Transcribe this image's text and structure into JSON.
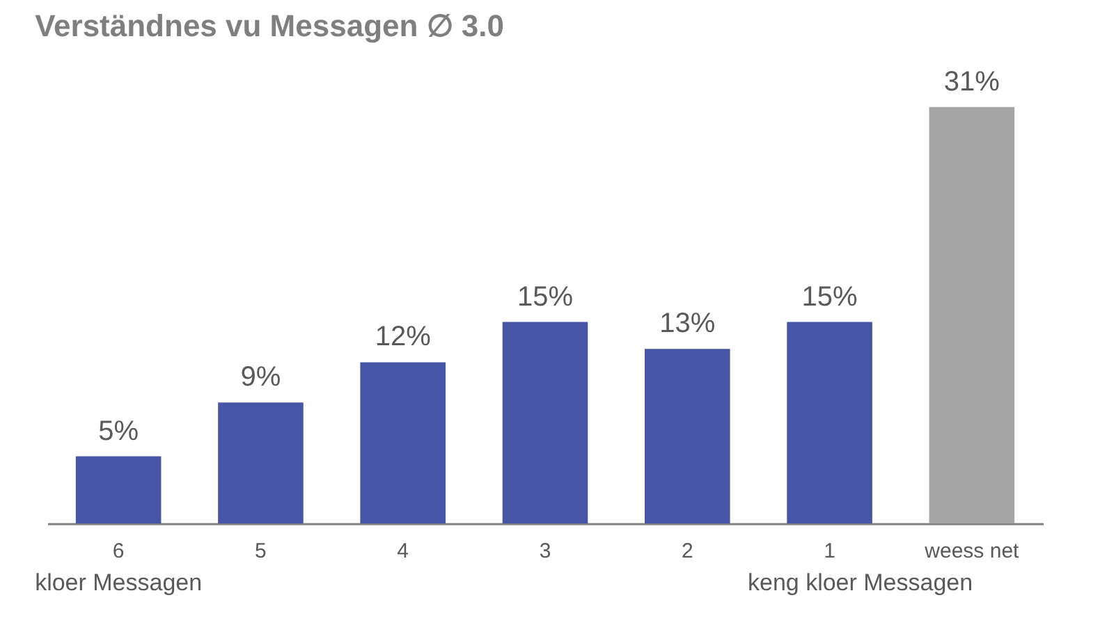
{
  "chart_data": {
    "type": "bar",
    "title": "Verständnes vu Messagen ∅ 3.0",
    "categories": [
      "6",
      "5",
      "4",
      "3",
      "2",
      "1",
      "weess net"
    ],
    "values": [
      5,
      9,
      12,
      15,
      13,
      15,
      31
    ],
    "colors": [
      "#4655a5",
      "#4655a5",
      "#4655a5",
      "#4655a5",
      "#4655a5",
      "#4655a5",
      "#a6a6a6"
    ],
    "data_labels": true,
    "value_labels": [
      "5%",
      "9%",
      "12%",
      "15%",
      "13%",
      "15%",
      "31%"
    ],
    "grid": false,
    "annotations": [
      "kloer Messagen",
      "keng kloer Messagen"
    ]
  }
}
